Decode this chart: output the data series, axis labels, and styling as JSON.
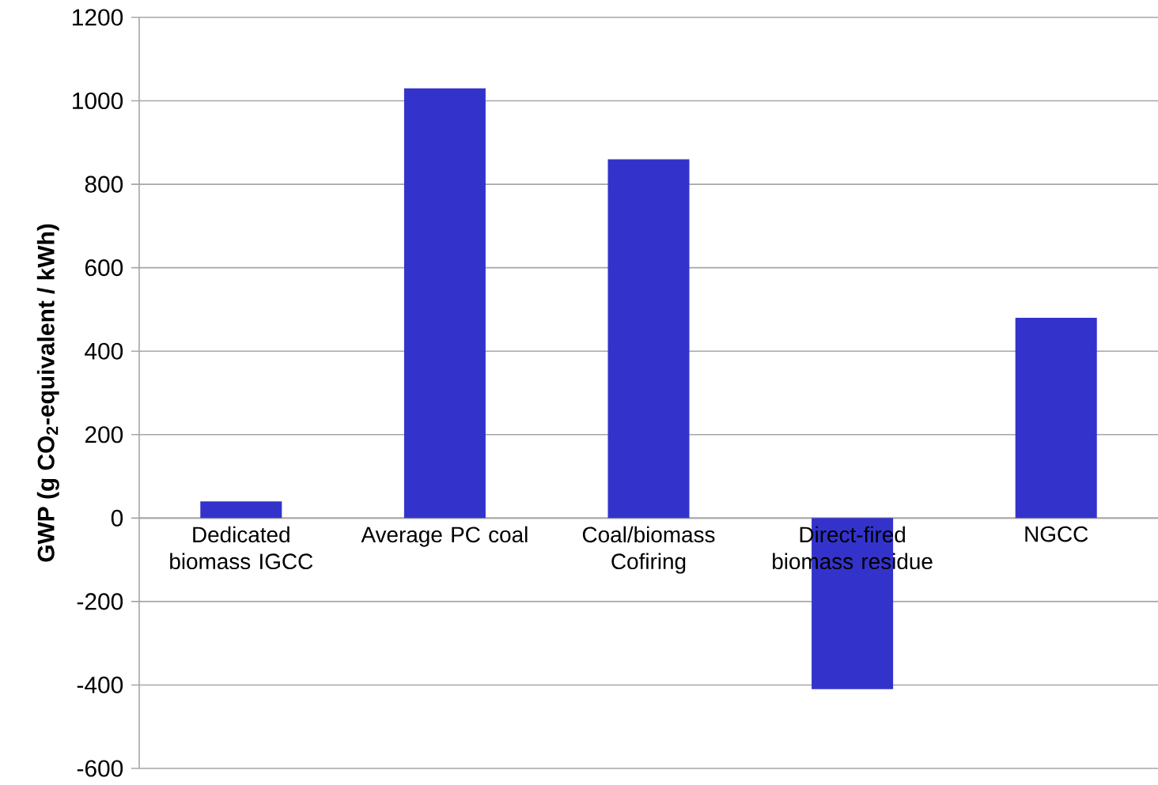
{
  "chart_data": {
    "type": "bar",
    "categories": [
      "Dedicated biomass IGCC",
      "Average PC coal",
      "Coal/biomass Cofiring",
      "Direct-fired biomass residue",
      "NGCC"
    ],
    "values": [
      40,
      1030,
      860,
      -410,
      480
    ],
    "color": "#3333cc",
    "ylabel": "GWP (g CO$_{2}$-equivalent / kWh)",
    "ylim": [
      -600,
      1200
    ],
    "yticks": [
      -600,
      -400,
      -200,
      0,
      200,
      400,
      600,
      800,
      1000,
      1200
    ],
    "grid": "y"
  }
}
